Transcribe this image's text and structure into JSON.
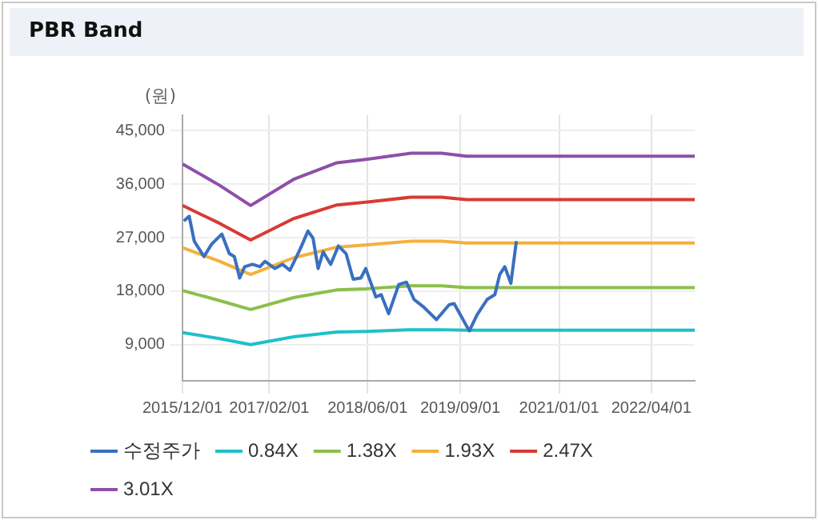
{
  "chart_data": {
    "type": "line",
    "title": "PBR Band",
    "ylabel": "(원)",
    "xlim": [
      "2015-12-01",
      "2022-11-01"
    ],
    "xticks": [
      {
        "value": "2015-12-01",
        "label": "2015/12/01"
      },
      {
        "value": "2017-02-01",
        "label": "2017/02/01"
      },
      {
        "value": "2018-06-01",
        "label": "2018/06/01"
      },
      {
        "value": "2019-09-01",
        "label": "2019/09/01"
      },
      {
        "value": "2021-01-01",
        "label": "2021/01/01"
      },
      {
        "value": "2022-04-01",
        "label": "2022/04/01"
      }
    ],
    "ylim": [
      2900,
      47600
    ],
    "yticks": [
      {
        "value": 9000,
        "label": "9,000"
      },
      {
        "value": 18000,
        "label": "18,000"
      },
      {
        "value": 27000,
        "label": "27,000"
      },
      {
        "value": 36000,
        "label": "36,000"
      },
      {
        "value": 45000,
        "label": "45,000"
      }
    ],
    "grid": true,
    "legend": "bottom",
    "marker": "none",
    "line_style": "solid",
    "series": [
      {
        "name": "수정주가",
        "color": "#3a6fc0",
        "x": [
          "2015-12-08",
          "2016-01-03",
          "2016-01-28",
          "2016-03-16",
          "2016-04-23",
          "2016-06-12",
          "2016-07-19",
          "2016-08-13",
          "2016-09-08",
          "2016-10-03",
          "2016-11-10",
          "2016-12-17",
          "2017-01-11",
          "2017-03-01",
          "2017-04-07",
          "2017-05-14",
          "2017-07-04",
          "2017-08-11",
          "2017-09-05",
          "2017-09-30",
          "2017-10-25",
          "2017-12-01",
          "2018-01-08",
          "2018-02-15",
          "2018-03-22",
          "2018-04-29",
          "2018-05-23",
          "2018-07-12",
          "2018-08-07",
          "2018-09-13",
          "2018-11-02",
          "2018-12-10",
          "2019-01-16",
          "2019-03-05",
          "2019-05-07",
          "2019-07-08",
          "2019-08-02",
          "2019-10-16",
          "2019-11-23",
          "2020-01-12",
          "2020-02-19",
          "2020-03-14",
          "2020-04-08",
          "2020-05-08",
          "2020-06-04"
        ],
        "values": [
          29800,
          30600,
          26400,
          23800,
          25900,
          27600,
          24300,
          23800,
          20200,
          22100,
          22500,
          22100,
          23000,
          21800,
          22500,
          21500,
          25100,
          28100,
          26900,
          21800,
          24600,
          22500,
          25600,
          24300,
          20000,
          20200,
          21800,
          17000,
          17400,
          14200,
          19100,
          19500,
          16600,
          15300,
          13200,
          15700,
          15900,
          11300,
          14000,
          16600,
          17400,
          20800,
          22100,
          19300,
          26400
        ]
      },
      {
        "name": "0.84X",
        "color": "#1fc0c8",
        "x": [
          "2015-12-01",
          "2016-06-01",
          "2016-11-01",
          "2017-06-01",
          "2018-01-01",
          "2018-06-01",
          "2019-01-01",
          "2019-06-01",
          "2019-10-01",
          "2022-11-01"
        ],
        "values": [
          11000,
          10000,
          9000,
          10300,
          11100,
          11200,
          11500,
          11500,
          11400,
          11400
        ]
      },
      {
        "name": "1.38X",
        "color": "#8cbf4a",
        "x": [
          "2015-12-01",
          "2016-06-01",
          "2016-11-01",
          "2017-06-01",
          "2018-01-01",
          "2018-06-01",
          "2019-01-01",
          "2019-06-01",
          "2019-10-01",
          "2022-11-01"
        ],
        "values": [
          18100,
          16400,
          14900,
          16900,
          18200,
          18400,
          18900,
          18900,
          18600,
          18600
        ]
      },
      {
        "name": "1.93X",
        "color": "#f5b03c",
        "x": [
          "2015-12-01",
          "2016-06-01",
          "2016-11-01",
          "2017-06-01",
          "2018-01-01",
          "2018-06-01",
          "2019-01-01",
          "2019-06-01",
          "2019-10-01",
          "2022-11-01"
        ],
        "values": [
          25300,
          23000,
          20800,
          23600,
          25400,
          25800,
          26400,
          26400,
          26100,
          26100
        ]
      },
      {
        "name": "2.47X",
        "color": "#d83a35",
        "x": [
          "2015-12-01",
          "2016-06-01",
          "2016-11-01",
          "2017-06-01",
          "2018-01-01",
          "2018-06-01",
          "2019-01-01",
          "2019-06-01",
          "2019-10-01",
          "2022-11-01"
        ],
        "values": [
          32400,
          29400,
          26600,
          30200,
          32500,
          33000,
          33800,
          33800,
          33400,
          33400
        ]
      },
      {
        "name": "3.01X",
        "color": "#8e4fa8",
        "x": [
          "2015-12-01",
          "2016-06-01",
          "2016-11-01",
          "2017-06-01",
          "2018-01-01",
          "2018-06-01",
          "2019-01-01",
          "2019-06-01",
          "2019-10-01",
          "2022-11-01"
        ],
        "values": [
          39400,
          35800,
          32400,
          36800,
          39600,
          40200,
          41200,
          41200,
          40700,
          40700
        ]
      }
    ]
  }
}
